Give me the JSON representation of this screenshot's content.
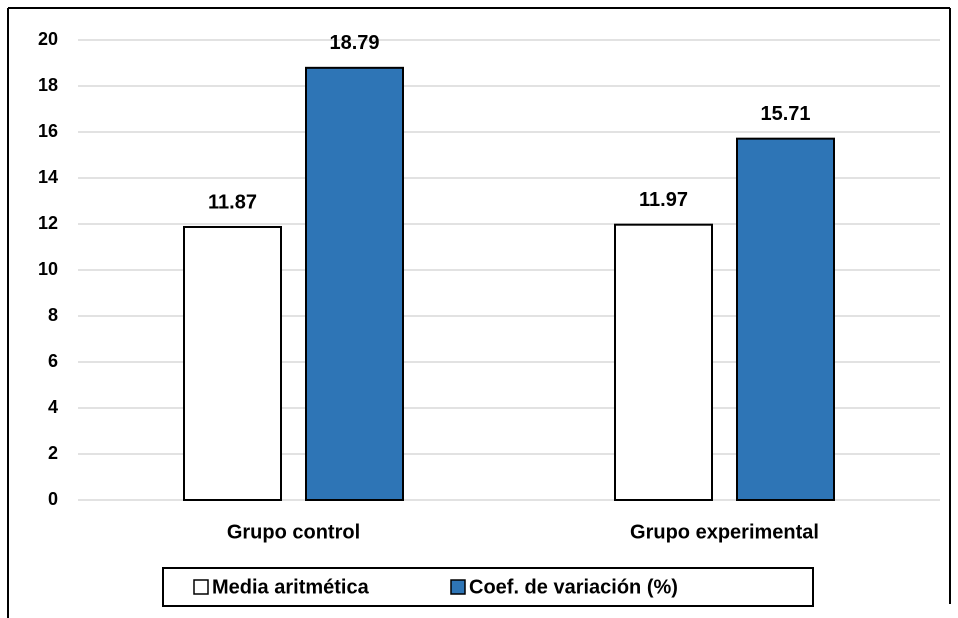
{
  "chart_data": {
    "type": "bar",
    "categories": [
      "Grupo control",
      "Grupo experimental"
    ],
    "series": [
      {
        "name": "Media aritmética",
        "color": "#ffffff",
        "values": [
          11.87,
          11.97
        ]
      },
      {
        "name": "Coef. de variación (%)",
        "color": "#2e75b6",
        "values": [
          18.79,
          15.71
        ]
      }
    ],
    "ylim": [
      0,
      20
    ],
    "yticks": [
      0,
      2,
      4,
      6,
      8,
      10,
      12,
      14,
      16,
      18,
      20
    ],
    "grid": true,
    "legend": "bottom"
  }
}
